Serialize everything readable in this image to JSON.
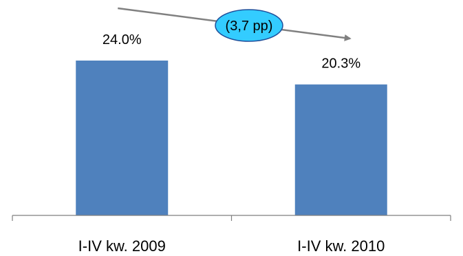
{
  "chart_data": {
    "type": "bar",
    "categories": [
      "I-IV kw. 2009",
      "I-IV kw. 2010"
    ],
    "values": [
      24.0,
      20.3
    ],
    "data_labels": [
      "24.0%",
      "20.3%"
    ],
    "ylim": [
      0,
      24.0
    ],
    "grid": false,
    "annotation": {
      "text": "(3,7 pp)",
      "kind": "arrow-callout",
      "from": "I-IV kw. 2009",
      "to": "I-IV kw. 2010"
    },
    "colors": {
      "bar": "#4F81BD",
      "axis": "#7F7F7F",
      "arrow": "#808080",
      "callout_fill": "#33CCFF",
      "callout_stroke": "#1F4E9A"
    }
  }
}
